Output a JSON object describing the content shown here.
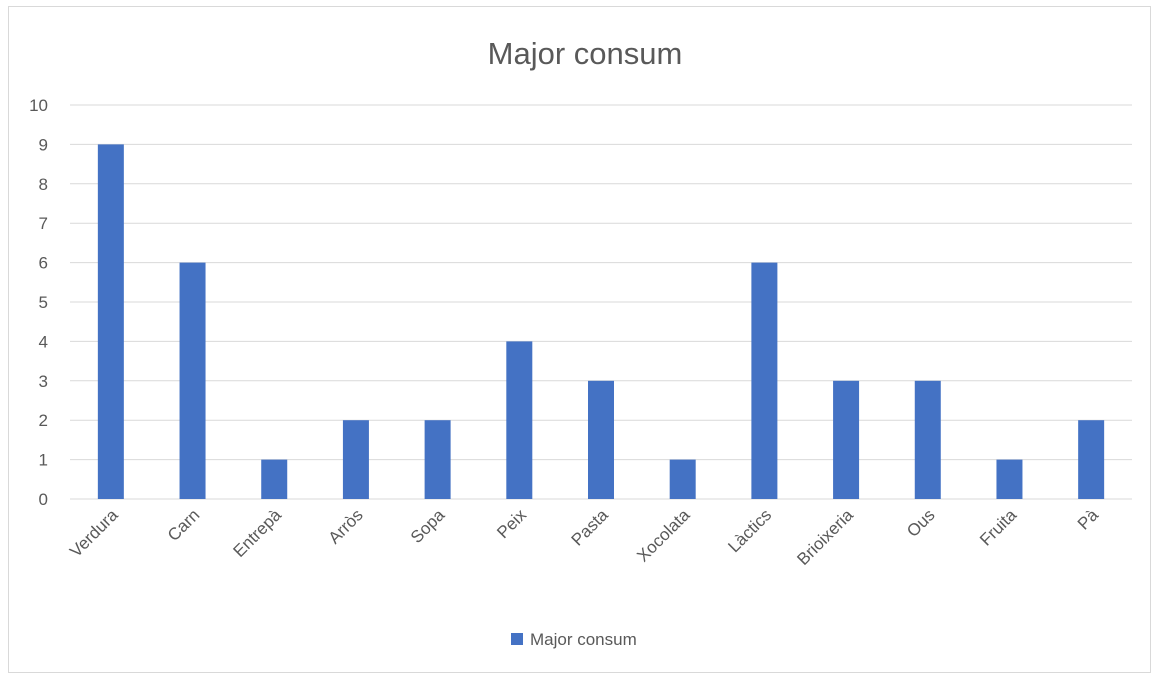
{
  "chart_data": {
    "type": "bar",
    "title": "Major consum",
    "xlabel": "",
    "ylabel": "",
    "categories": [
      "Verdura",
      "Carn",
      "Entrepà",
      "Arròs",
      "Sopa",
      "Peix",
      "Pasta",
      "Xocolata",
      "Làctics",
      "Brioixeria",
      "Ous",
      "Fruita",
      "Pà"
    ],
    "series": [
      {
        "name": "Major consum",
        "values": [
          9,
          6,
          1,
          2,
          2,
          4,
          3,
          1,
          6,
          3,
          3,
          1,
          2
        ],
        "color": "#4472c4"
      }
    ],
    "ylim": [
      0,
      10
    ],
    "yticks": [
      "0",
      "1",
      "2",
      "3",
      "4",
      "5",
      "6",
      "7",
      "8",
      "9",
      "10"
    ],
    "grid": true,
    "legend": "bottom",
    "colors": {
      "gridline": "#d9d9d9",
      "text": "#595959",
      "frame": "#d9d9d9"
    }
  }
}
